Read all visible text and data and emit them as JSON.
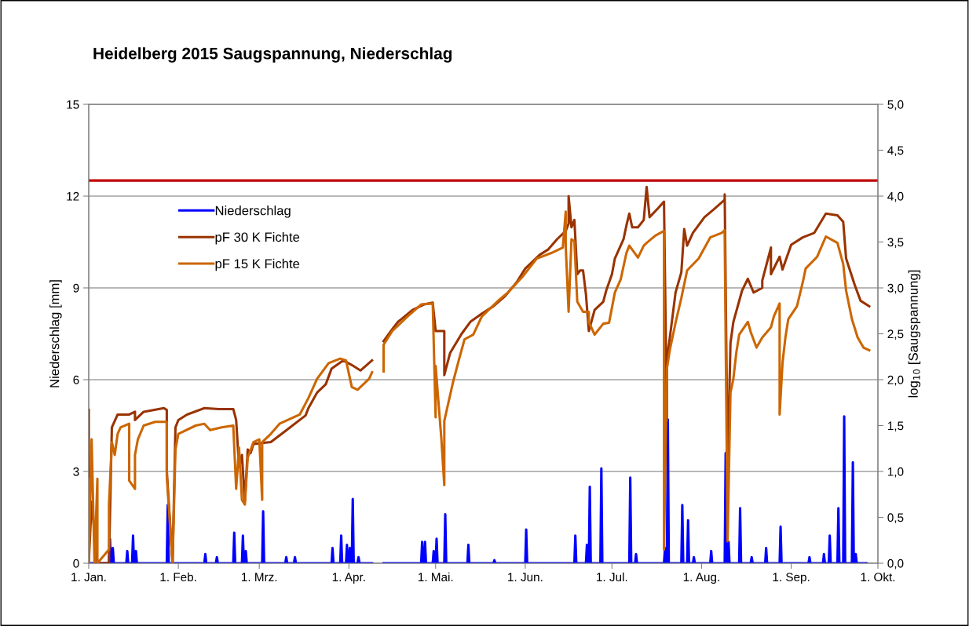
{
  "chart_data": {
    "type": "line",
    "title": "Heidelberg 2015 Saugspannung, Niederschlag",
    "ylabel": "Niederschlag [mm]",
    "y2label": "log$_{10}$ [Saugspannung]",
    "xlim": [
      "2015-01-01",
      "2015-10-01"
    ],
    "xticks": [
      {
        "value": "2015-01-01",
        "label": "1. Jan."
      },
      {
        "value": "2015-02-01",
        "label": "1. Feb."
      },
      {
        "value": "2015-03-01",
        "label": "1. Mrz."
      },
      {
        "value": "2015-04-01",
        "label": "1. Apr."
      },
      {
        "value": "2015-05-01",
        "label": "1. Mai."
      },
      {
        "value": "2015-06-01",
        "label": "1. Jun."
      },
      {
        "value": "2015-07-01",
        "label": "1. Jul."
      },
      {
        "value": "2015-08-01",
        "label": "1. Aug."
      },
      {
        "value": "2015-09-01",
        "label": "1. Sep."
      },
      {
        "value": "2015-10-01",
        "label": "1. Okt."
      }
    ],
    "ylim": [
      0,
      15
    ],
    "yticks": [
      0,
      3,
      6,
      9,
      12,
      15
    ],
    "y2lim": [
      0,
      5
    ],
    "y2ticks": [
      {
        "value": 0,
        "label": "0,0"
      },
      {
        "value": 0.5,
        "label": "0,5"
      },
      {
        "value": 1,
        "label": "1,0"
      },
      {
        "value": 1.5,
        "label": "1,5"
      },
      {
        "value": 2,
        "label": "2,0"
      },
      {
        "value": 2.5,
        "label": "2,5"
      },
      {
        "value": 3,
        "label": "3,0"
      },
      {
        "value": 3.5,
        "label": "3,5"
      },
      {
        "value": 4,
        "label": "4,0"
      },
      {
        "value": 4.5,
        "label": "4,5"
      },
      {
        "value": 5,
        "label": "5,0"
      }
    ],
    "grid": "y",
    "legend": "top left",
    "marker": "none",
    "line_style": "solid",
    "ref_lines": [
      {
        "axis": "y2",
        "value": 4.17,
        "label": null,
        "color": "#c00000"
      }
    ],
    "series": [
      {
        "name": "Niederschlag",
        "color": "#0000ff",
        "x": [
          "2015-01-01",
          "2015-01-08T00:00",
          "2015-01-08T08:00",
          "2015-01-08T16:00",
          "2015-01-09T00:00",
          "2015-01-09T08:00",
          "2015-01-09T16:00",
          "2015-01-14T00:00",
          "2015-01-14T08:00",
          "2015-01-14T16:00",
          "2015-01-16T00:00",
          "2015-01-16T08:00",
          "2015-01-16T16:00",
          "2015-01-17T00:00",
          "2015-01-17T08:00",
          "2015-01-17T16:00",
          "2015-01-28T00:00",
          "2015-01-28T08:00",
          "2015-01-28T16:00",
          "2015-02-10T00:00",
          "2015-02-10T08:00",
          "2015-02-10T16:00",
          "2015-02-14T00:00",
          "2015-02-14T08:00",
          "2015-02-14T16:00",
          "2015-02-20T00:00",
          "2015-02-20T08:00",
          "2015-02-20T16:00",
          "2015-02-23T00:00",
          "2015-02-23T08:00",
          "2015-02-23T16:00",
          "2015-02-24T00:00",
          "2015-02-24T08:00",
          "2015-02-24T16:00",
          "2015-03-02T00:00",
          "2015-03-02T08:00",
          "2015-03-02T16:00",
          "2015-03-10T00:00",
          "2015-03-10T08:00",
          "2015-03-10T16:00",
          "2015-03-13T00:00",
          "2015-03-13T08:00",
          "2015-03-13T16:00",
          "2015-03-26T00:00",
          "2015-03-26T08:00",
          "2015-03-26T16:00",
          "2015-03-29T00:00",
          "2015-03-29T08:00",
          "2015-03-29T16:00",
          "2015-03-31T00:00",
          "2015-03-31T08:00",
          "2015-03-31T16:00",
          "2015-04-01T00:00",
          "2015-04-01T08:00",
          "2015-04-01T16:00",
          "2015-04-02T00:00",
          "2015-04-02T08:00",
          "2015-04-02T16:00",
          "2015-04-04T00:00",
          "2015-04-04T08:00",
          "2015-04-04T16:00",
          "2015-04-09",
          "2015-04-11",
          "2015-04-13",
          "2015-04-26T00:00",
          "2015-04-26T08:00",
          "2015-04-26T16:00",
          "2015-04-27T00:00",
          "2015-04-27T08:00",
          "2015-04-27T16:00",
          "2015-04-30T00:00",
          "2015-04-30T08:00",
          "2015-04-30T16:00",
          "2015-05-01T00:00",
          "2015-05-01T08:00",
          "2015-05-01T16:00",
          "2015-05-04T00:00",
          "2015-05-04T08:00",
          "2015-05-04T16:00",
          "2015-05-12T00:00",
          "2015-05-12T08:00",
          "2015-05-12T16:00",
          "2015-05-21T00:00",
          "2015-05-21T08:00",
          "2015-05-21T16:00",
          "2015-06-01T00:00",
          "2015-06-01T08:00",
          "2015-06-01T16:00",
          "2015-06-18T00:00",
          "2015-06-18T08:00",
          "2015-06-18T16:00",
          "2015-06-22T00:00",
          "2015-06-22T08:00",
          "2015-06-22T16:00",
          "2015-06-23T00:00",
          "2015-06-23T08:00",
          "2015-06-23T16:00",
          "2015-06-27T00:00",
          "2015-06-27T08:00",
          "2015-06-27T16:00",
          "2015-07-07T00:00",
          "2015-07-07T08:00",
          "2015-07-07T16:00",
          "2015-07-09T00:00",
          "2015-07-09T08:00",
          "2015-07-09T16:00",
          "2015-07-19T00:00",
          "2015-07-19T08:00",
          "2015-07-19T16:00",
          "2015-07-20T00:00",
          "2015-07-20T08:00",
          "2015-07-20T16:00",
          "2015-07-25T00:00",
          "2015-07-25T08:00",
          "2015-07-25T16:00",
          "2015-07-27T00:00",
          "2015-07-27T08:00",
          "2015-07-27T16:00",
          "2015-07-29T00:00",
          "2015-07-29T08:00",
          "2015-07-29T16:00",
          "2015-08-04T00:00",
          "2015-08-04T08:00",
          "2015-08-04T16:00",
          "2015-08-09T00:00",
          "2015-08-09T08:00",
          "2015-08-09T16:00",
          "2015-08-10T00:00",
          "2015-08-10T08:00",
          "2015-08-10T16:00",
          "2015-08-14T00:00",
          "2015-08-14T08:00",
          "2015-08-14T16:00",
          "2015-08-18T00:00",
          "2015-08-18T08:00",
          "2015-08-18T16:00",
          "2015-08-23T00:00",
          "2015-08-23T08:00",
          "2015-08-23T16:00",
          "2015-08-28T00:00",
          "2015-08-28T08:00",
          "2015-08-28T16:00",
          "2015-09-07T00:00",
          "2015-09-07T08:00",
          "2015-09-07T16:00",
          "2015-09-12T00:00",
          "2015-09-12T08:00",
          "2015-09-12T16:00",
          "2015-09-14T00:00",
          "2015-09-14T08:00",
          "2015-09-14T16:00",
          "2015-09-17T00:00",
          "2015-09-17T08:00",
          "2015-09-17T16:00",
          "2015-09-19T00:00",
          "2015-09-19T08:00",
          "2015-09-19T16:00",
          "2015-09-22T00:00",
          "2015-09-22T08:00",
          "2015-09-22T16:00",
          "2015-09-23T00:00",
          "2015-09-23T08:00",
          "2015-09-23T16:00",
          "2015-09-27"
        ],
        "values": [
          0,
          0,
          0.8,
          0,
          0,
          0.5,
          0,
          0,
          0.4,
          0,
          0,
          0.9,
          0,
          0,
          0.4,
          0,
          0,
          1.9,
          0,
          0,
          0.3,
          0,
          0,
          0.2,
          0,
          0,
          1.0,
          0,
          0,
          0.9,
          0,
          0,
          0.4,
          0,
          0,
          1.7,
          0,
          0,
          0.2,
          0,
          0,
          0.2,
          0,
          0,
          0.5,
          0,
          0,
          0.9,
          0,
          0,
          0.6,
          0,
          0,
          0.5,
          0,
          0,
          2.1,
          0,
          0,
          0.2,
          0,
          0,
          null,
          0,
          0,
          0.7,
          0,
          0,
          0.7,
          0,
          0,
          0.4,
          0,
          0,
          0.8,
          0,
          0,
          1.6,
          0,
          0,
          0.6,
          0,
          0,
          0.1,
          0,
          0,
          1.1,
          0,
          0,
          0.9,
          0,
          0,
          0.6,
          0,
          0,
          2.5,
          0,
          0,
          3.1,
          0,
          0,
          2.8,
          0,
          0,
          0.3,
          0,
          0,
          0.5,
          0,
          0,
          4.7,
          0,
          0,
          1.9,
          0,
          0,
          1.4,
          0,
          0,
          0.2,
          0,
          0,
          0.4,
          0,
          0,
          3.6,
          0,
          0,
          0.7,
          0,
          0,
          1.8,
          0,
          0,
          0.2,
          0,
          0,
          0.5,
          0,
          0,
          1.2,
          0,
          0,
          0.2,
          0,
          0,
          0.3,
          0,
          0,
          0.9,
          0,
          0,
          1.8,
          0,
          0,
          4.8,
          0,
          0,
          3.3,
          0,
          0,
          0.3,
          0,
          0
        ]
      },
      {
        "name": "pF 30 K Fichte",
        "color": "#993300",
        "axis": "y2",
        "x": [
          "2015-01-01",
          "2015-01-01",
          "2015-01-02",
          "2015-01-04",
          "2015-01-08",
          "2015-01-09",
          "2015-01-11",
          "2015-01-15",
          "2015-01-17",
          "2015-01-17",
          "2015-01-20",
          "2015-01-27",
          "2015-01-28",
          "2015-01-28",
          "2015-01-30",
          "2015-01-31",
          "2015-02-01",
          "2015-02-04",
          "2015-02-10",
          "2015-02-15",
          "2015-02-20",
          "2015-02-21",
          "2015-02-22",
          "2015-02-23",
          "2015-02-24",
          "2015-02-25",
          "2015-02-26",
          "2015-02-27",
          "2015-03-05",
          "2015-03-10",
          "2015-03-17",
          "2015-03-18",
          "2015-03-21",
          "2015-03-24",
          "2015-03-26",
          "2015-03-30",
          "2015-04-02",
          "2015-04-05",
          "2015-04-09",
          "2015-04-11",
          "2015-04-13",
          "2015-04-16",
          "2015-04-18",
          "2015-04-23",
          "2015-04-27",
          "2015-04-30",
          "2015-05-01",
          "2015-05-04",
          "2015-05-04",
          "2015-05-06",
          "2015-05-10",
          "2015-05-13",
          "2015-05-17",
          "2015-05-21",
          "2015-05-25",
          "2015-05-29",
          "2015-06-01",
          "2015-06-06",
          "2015-06-09",
          "2015-06-12",
          "2015-06-15",
          "2015-06-16",
          "2015-06-16",
          "2015-06-17",
          "2015-06-18",
          "2015-06-19",
          "2015-06-20",
          "2015-06-21",
          "2015-06-22",
          "2015-06-23",
          "2015-06-25",
          "2015-06-28",
          "2015-06-29",
          "2015-07-01",
          "2015-07-02",
          "2015-07-05",
          "2015-07-06",
          "2015-07-07",
          "2015-07-08",
          "2015-07-10",
          "2015-07-12",
          "2015-07-13",
          "2015-07-14",
          "2015-07-17",
          "2015-07-19",
          "2015-07-20",
          "2015-07-20",
          "2015-07-22",
          "2015-07-23",
          "2015-07-25",
          "2015-07-26",
          "2015-07-27",
          "2015-07-29",
          "2015-08-02",
          "2015-08-05",
          "2015-08-09",
          "2015-08-09",
          "2015-08-10",
          "2015-08-11",
          "2015-08-12",
          "2015-08-15",
          "2015-08-17",
          "2015-08-19",
          "2015-08-22",
          "2015-08-22",
          "2015-08-25",
          "2015-08-25",
          "2015-08-28",
          "2015-08-29",
          "2015-09-01",
          "2015-09-05",
          "2015-09-09",
          "2015-09-13",
          "2015-09-17",
          "2015-09-19",
          "2015-09-20",
          "2015-09-23",
          "2015-09-25",
          "2015-09-28"
        ],
        "values": [
          1.67,
          0,
          0.67,
          0,
          0,
          1.48,
          1.62,
          1.62,
          1.65,
          1.56,
          1.65,
          1.69,
          1.67,
          1.01,
          0,
          1.48,
          1.56,
          1.62,
          1.69,
          1.68,
          1.68,
          1.56,
          1.05,
          1.18,
          0.67,
          1.24,
          1.2,
          1.3,
          1.32,
          1.44,
          1.61,
          1.69,
          1.86,
          1.95,
          2.12,
          2.21,
          2.16,
          2.1,
          2.21,
          null,
          2.42,
          2.55,
          2.63,
          2.76,
          2.82,
          2.84,
          2.53,
          2.53,
          2.05,
          2.29,
          2.5,
          2.63,
          2.72,
          2.8,
          2.91,
          3.06,
          3.21,
          3.36,
          3.42,
          3.53,
          3.62,
          3.7,
          4.0,
          3.66,
          3.74,
          3.15,
          3.19,
          3.19,
          2.93,
          2.53,
          2.76,
          2.85,
          2.97,
          3.15,
          3.32,
          3.53,
          3.68,
          3.81,
          3.66,
          3.66,
          3.74,
          4.1,
          3.77,
          3.87,
          3.94,
          1.55,
          2.21,
          2.7,
          2.95,
          3.17,
          3.64,
          3.46,
          3.6,
          3.77,
          3.85,
          3.96,
          4.02,
          1.03,
          2.4,
          2.63,
          2.97,
          3.1,
          2.95,
          3.0,
          3.08,
          3.44,
          3.15,
          3.34,
          3.2,
          3.47,
          3.55,
          3.6,
          3.81,
          3.79,
          3.72,
          3.32,
          3.03,
          2.86,
          2.8
        ]
      },
      {
        "name": "pF 15 K Fichte",
        "color": "#cc6600",
        "axis": "y2",
        "x": [
          "2015-01-01",
          "2015-01-01",
          "2015-01-02",
          "2015-01-03",
          "2015-01-04",
          "2015-01-04",
          "2015-01-08",
          "2015-01-08",
          "2015-01-09",
          "2015-01-10",
          "2015-01-11",
          "2015-01-12",
          "2015-01-15",
          "2015-01-15",
          "2015-01-17",
          "2015-01-17",
          "2015-01-18",
          "2015-01-20",
          "2015-01-24",
          "2015-01-28",
          "2015-01-28",
          "2015-01-30",
          "2015-01-31",
          "2015-02-01",
          "2015-02-07",
          "2015-02-10",
          "2015-02-12",
          "2015-02-16",
          "2015-02-20",
          "2015-02-21",
          "2015-02-22",
          "2015-02-23",
          "2015-02-24",
          "2015-02-25",
          "2015-02-27",
          "2015-03-01",
          "2015-03-02",
          "2015-03-02",
          "2015-03-05",
          "2015-03-08",
          "2015-03-15",
          "2015-03-18",
          "2015-03-21",
          "2015-03-25",
          "2015-03-29",
          "2015-03-31",
          "2015-04-02",
          "2015-04-04",
          "2015-04-08",
          "2015-04-09",
          "2015-04-11",
          "2015-04-13",
          "2015-04-13",
          "2015-04-16",
          "2015-04-21",
          "2015-04-26",
          "2015-04-30",
          "2015-05-01",
          "2015-05-01",
          "2015-05-03",
          "2015-05-04",
          "2015-05-04",
          "2015-05-05",
          "2015-05-07",
          "2015-05-09",
          "2015-05-11",
          "2015-05-14",
          "2015-05-17",
          "2015-05-23",
          "2015-05-26",
          "2015-05-31",
          "2015-06-05",
          "2015-06-10",
          "2015-06-14",
          "2015-06-15",
          "2015-06-15",
          "2015-06-16",
          "2015-06-17",
          "2015-06-18",
          "2015-06-19",
          "2015-06-21",
          "2015-06-23",
          "2015-06-23",
          "2015-06-25",
          "2015-06-28",
          "2015-06-30",
          "2015-07-02",
          "2015-07-04",
          "2015-07-06",
          "2015-07-07",
          "2015-07-10",
          "2015-07-12",
          "2015-07-13",
          "2015-07-16",
          "2015-07-19",
          "2015-07-19",
          "2015-07-20",
          "2015-07-21",
          "2015-07-23",
          "2015-07-25",
          "2015-07-27",
          "2015-07-31",
          "2015-08-04",
          "2015-08-08",
          "2015-08-09",
          "2015-08-09",
          "2015-08-10",
          "2015-08-11",
          "2015-08-12",
          "2015-08-13",
          "2015-08-14",
          "2015-08-17",
          "2015-08-18",
          "2015-08-20",
          "2015-08-22",
          "2015-08-25",
          "2015-08-26",
          "2015-08-28",
          "2015-08-28",
          "2015-08-29",
          "2015-08-30",
          "2015-08-31",
          "2015-09-03",
          "2015-09-05",
          "2015-09-06",
          "2015-09-10",
          "2015-09-13",
          "2015-09-17",
          "2015-09-19",
          "2015-09-20",
          "2015-09-22",
          "2015-09-24",
          "2015-09-26",
          "2015-09-28"
        ],
        "values": [
          0.92,
          0,
          1.35,
          0,
          0.92,
          0,
          0.15,
          0.64,
          1.32,
          1.18,
          1.41,
          1.48,
          1.52,
          0.9,
          0.81,
          1.18,
          1.35,
          1.5,
          1.54,
          1.54,
          0.95,
          0,
          1.24,
          1.41,
          1.5,
          1.52,
          1.45,
          1.48,
          1.5,
          0.81,
          1.26,
          0.69,
          0.64,
          1.15,
          1.32,
          1.35,
          0.69,
          1.32,
          1.41,
          1.52,
          1.62,
          1.8,
          2.01,
          2.18,
          2.23,
          2.21,
          1.92,
          1.89,
          2.01,
          2.08,
          null,
          2.09,
          2.38,
          2.53,
          2.68,
          2.82,
          2.83,
          1.59,
          2.15,
          1.35,
          0.85,
          1.55,
          1.69,
          1.97,
          2.21,
          2.44,
          2.49,
          2.69,
          2.87,
          2.95,
          3.12,
          3.32,
          3.38,
          3.44,
          3.83,
          3.46,
          2.74,
          3.53,
          3.51,
          2.85,
          2.74,
          2.74,
          2.63,
          2.49,
          2.61,
          2.62,
          2.95,
          3.09,
          3.38,
          3.46,
          3.33,
          3.46,
          3.49,
          3.57,
          3.62,
          0.15,
          2.12,
          2.32,
          2.62,
          2.89,
          3.19,
          3.32,
          3.55,
          3.6,
          3.63,
          3.57,
          0.24,
          1.86,
          2.01,
          2.29,
          2.49,
          2.63,
          2.52,
          2.35,
          2.46,
          2.57,
          2.69,
          2.83,
          1.62,
          2.18,
          2.46,
          2.66,
          2.8,
          3.06,
          3.21,
          3.34,
          3.56,
          3.49,
          3.26,
          2.97,
          2.66,
          2.46,
          2.35,
          2.32
        ]
      }
    ]
  }
}
